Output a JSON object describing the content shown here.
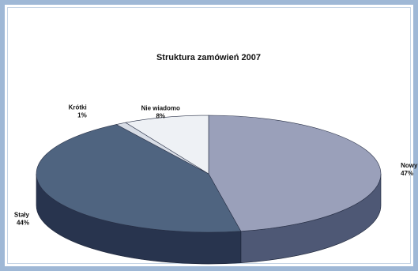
{
  "chart_data": {
    "type": "pie",
    "title": "Struktura zamówień 2007",
    "slices": [
      {
        "label": "Nowy",
        "value": 47,
        "value_label": "47%",
        "color": "#9aa0ba",
        "side_color": "#4e5875"
      },
      {
        "label": "Stały",
        "value": 44,
        "value_label": "44%",
        "color": "#4f6480",
        "side_color": "#28344e"
      },
      {
        "label": "Krótki",
        "value": 1,
        "value_label": "1%",
        "color": "#d8dde6",
        "side_color": "#8d96a8"
      },
      {
        "label": "Nie wiadomo",
        "value": 8,
        "value_label": "8%",
        "color": "#eef1f5",
        "side_color": "#b3bac6"
      }
    ],
    "legend": "none",
    "view": "3d"
  }
}
